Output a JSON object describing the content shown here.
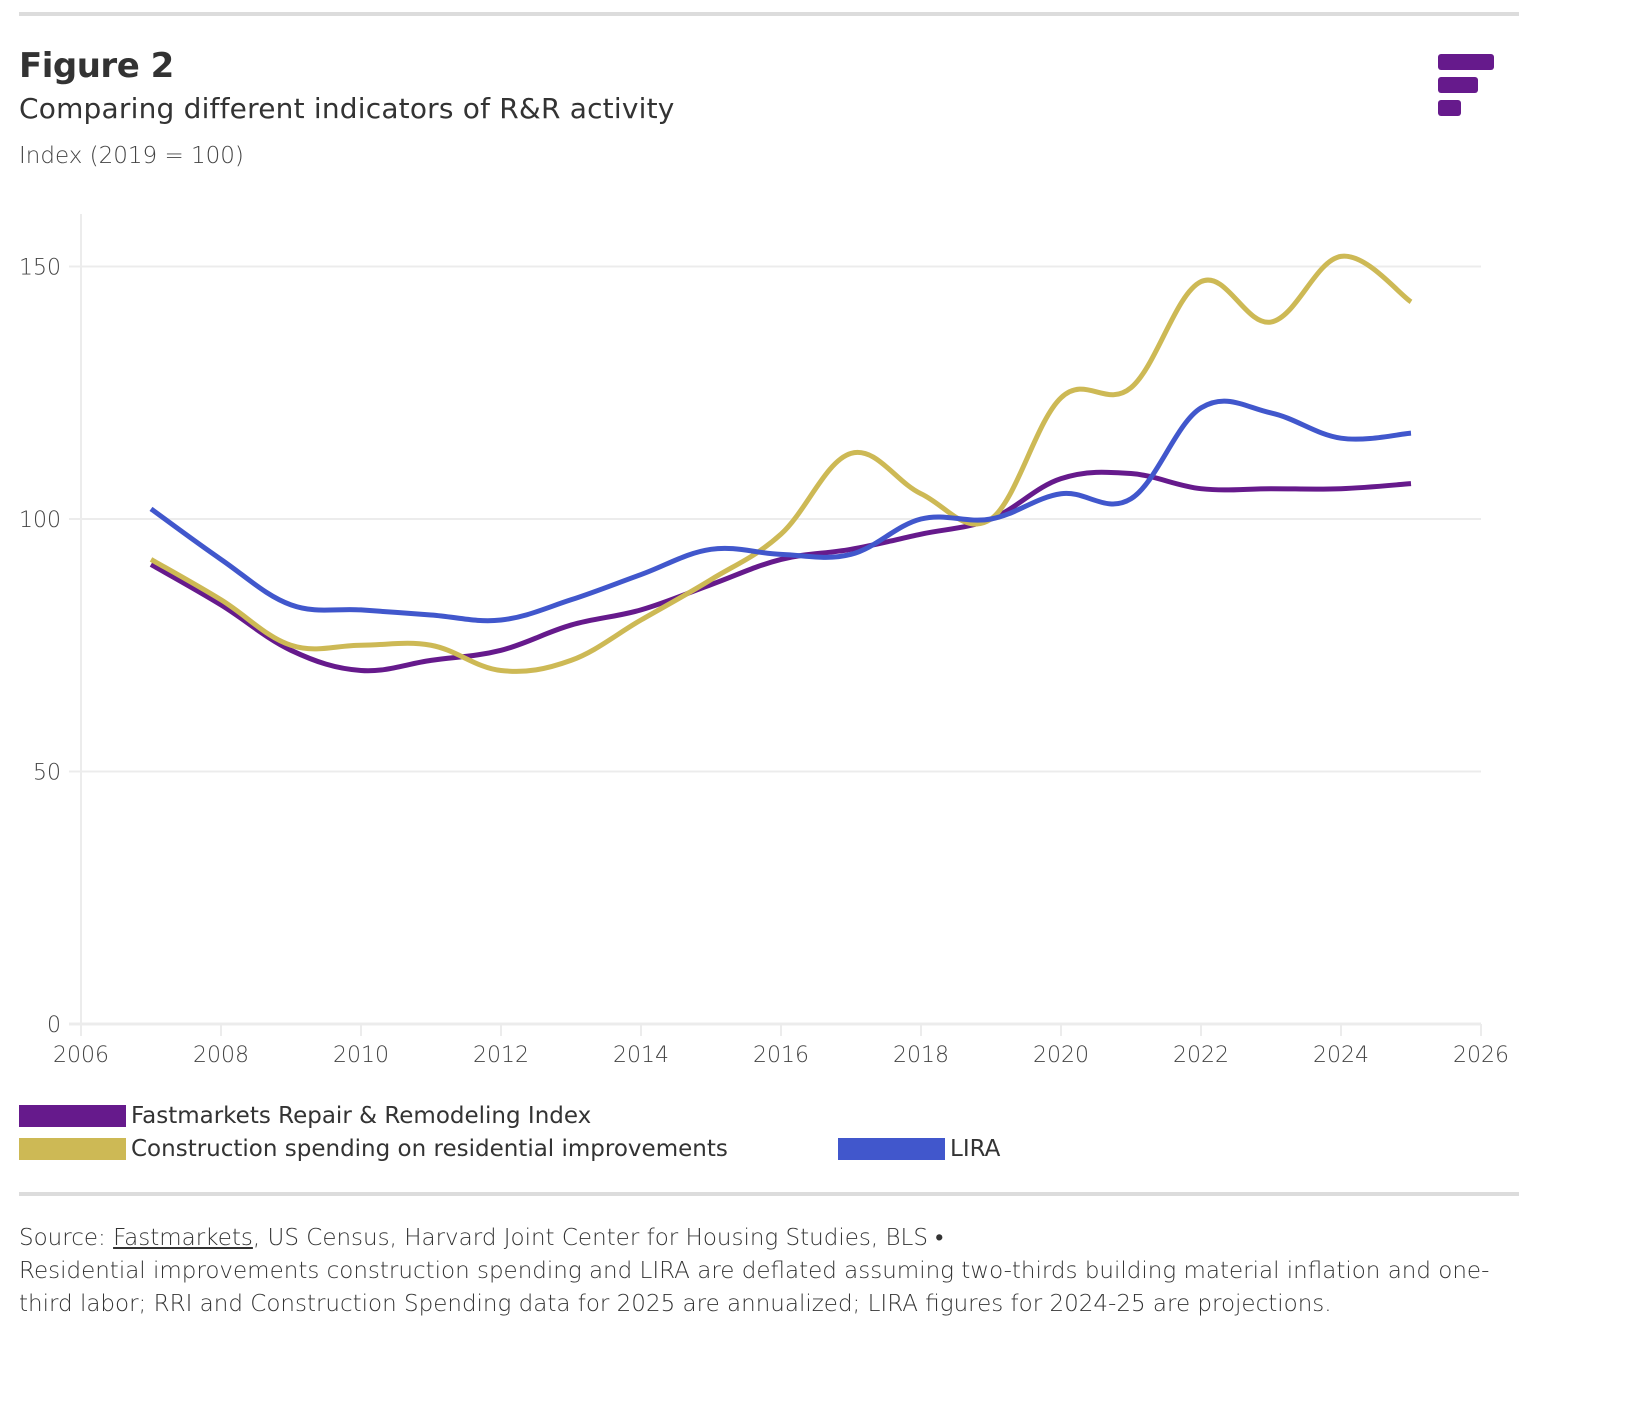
{
  "header": {
    "title": "Figure 2",
    "subtitle": "Comparing different indicators of R&R activity",
    "unit": "Index (2019 = 100)",
    "logo_icon": "fastmarkets-logo-icon"
  },
  "colors": {
    "rri": "#661a8c",
    "construction": "#cdb955",
    "lira": "#4157cc",
    "grid": "#ececec",
    "rule": "#dcdcdc"
  },
  "chart_data": {
    "type": "line",
    "title": "Comparing different indicators of R&R activity",
    "subtitle": "Index (2019 = 100)",
    "xlabel": "",
    "ylabel": "Index (2019 = 100)",
    "xlim": [
      2006,
      2026
    ],
    "ylim": [
      0,
      160
    ],
    "x_ticks": [
      2006,
      2008,
      2010,
      2012,
      2014,
      2016,
      2018,
      2020,
      2022,
      2024,
      2026
    ],
    "y_ticks": [
      0,
      50,
      100,
      150
    ],
    "grid": "horizontal",
    "legend_position": "bottom",
    "x": [
      2007,
      2008,
      2009,
      2010,
      2011,
      2012,
      2013,
      2014,
      2015,
      2016,
      2017,
      2018,
      2019,
      2020,
      2021,
      2022,
      2023,
      2024,
      2025
    ],
    "series": [
      {
        "name": "Fastmarkets Repair & Remodeling Index",
        "color": "#661a8c",
        "values": [
          91,
          83,
          74,
          70,
          72,
          74,
          79,
          82,
          87,
          92,
          94,
          97,
          100,
          108,
          109,
          106,
          106,
          106,
          107
        ]
      },
      {
        "name": "Construction spending on residential improvements",
        "color": "#cdb955",
        "values": [
          92,
          84,
          75,
          75,
          75,
          70,
          72,
          80,
          88,
          97,
          113,
          105,
          100,
          124,
          126,
          147,
          139,
          152,
          143
        ]
      },
      {
        "name": "LIRA",
        "color": "#4157cc",
        "values": [
          102,
          92,
          83,
          82,
          81,
          80,
          84,
          89,
          94,
          93,
          93,
          100,
          100,
          105,
          104,
          122,
          121,
          116,
          117
        ]
      }
    ]
  },
  "legend": {
    "items": [
      {
        "label": "Fastmarkets Repair & Remodeling Index",
        "color": "#661a8c"
      },
      {
        "label": "Construction spending on residential improvements",
        "color": "#cdb955"
      },
      {
        "label": "LIRA",
        "color": "#4157cc"
      }
    ]
  },
  "footer": {
    "source_prefix": "Source: ",
    "source_link": "Fastmarkets",
    "source_rest": ", US Census, Harvard Joint Center for Housing Studies, BLS •",
    "note": "Residential improvements construction spending and LIRA are deflated assuming two-thirds building material inflation and one-third labor; RRI and Construction Spending data for 2025 are annualized; LIRA figures for 2024-25 are projections."
  }
}
